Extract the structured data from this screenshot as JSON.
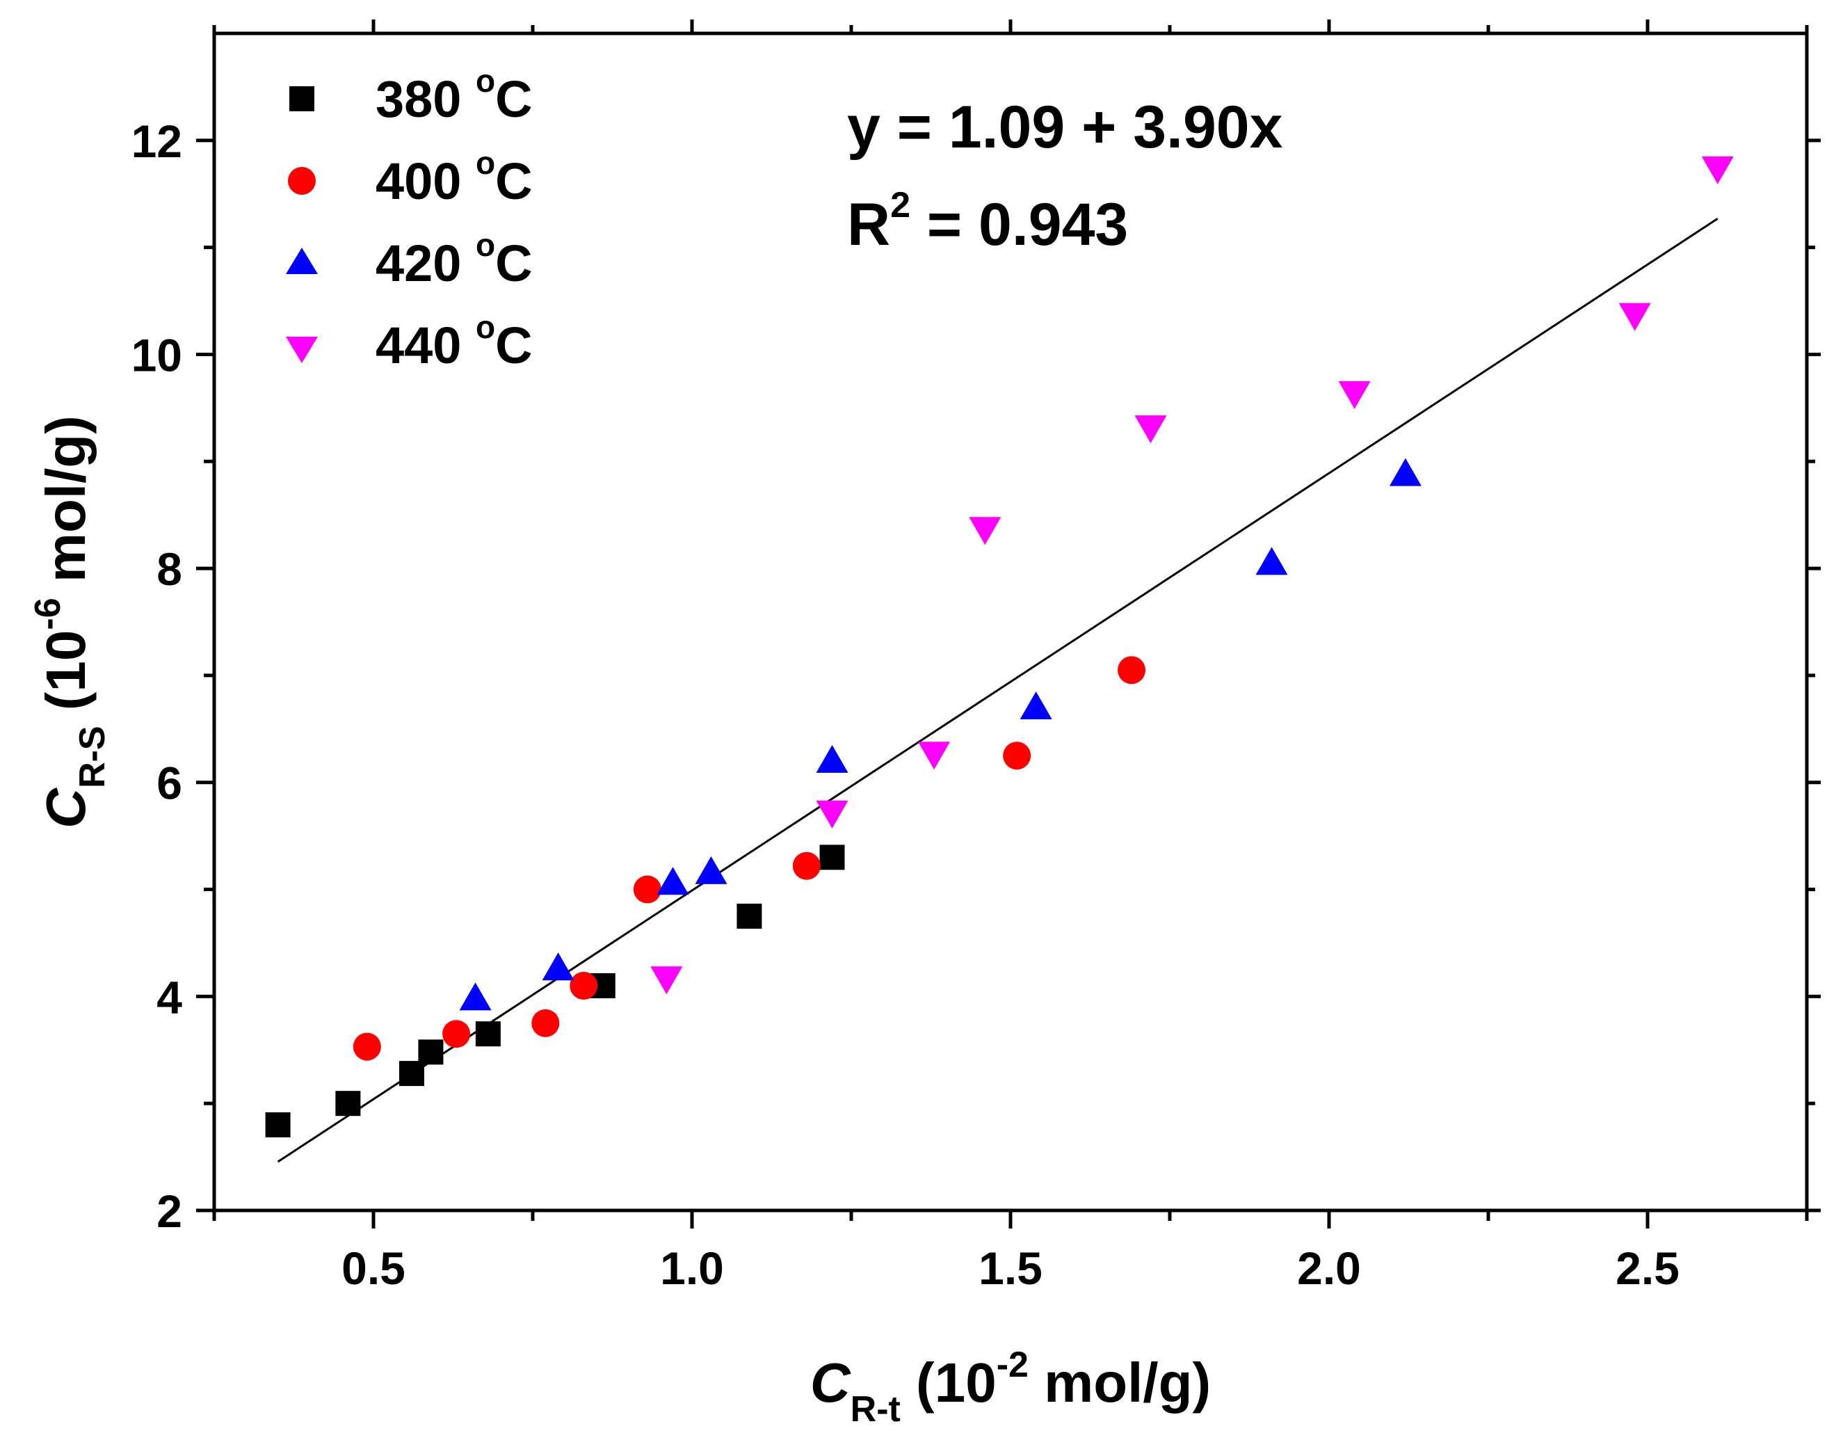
{
  "chart_data": {
    "type": "scatter",
    "title": "",
    "xlabel": {
      "main": "C",
      "sub": "R-t",
      "pre": " (10",
      "exp": "-2",
      "post": " mol/g)"
    },
    "ylabel": {
      "main": "C",
      "sub": "R-S",
      "pre": " (10",
      "exp": "-6",
      "post": " mol/g)"
    },
    "xlim": [
      0.25,
      2.75
    ],
    "ylim": [
      2,
      13
    ],
    "xticks_major": [
      0.5,
      1.0,
      1.5,
      2.0,
      2.5
    ],
    "xtick_labels": [
      "0.5",
      "1.0",
      "1.5",
      "2.0",
      "2.5"
    ],
    "xticks_minor": [
      0.25,
      0.75,
      1.25,
      1.75,
      2.25,
      2.75
    ],
    "yticks_major": [
      2,
      4,
      6,
      8,
      10,
      12
    ],
    "ytick_labels": [
      "2",
      "4",
      "6",
      "8",
      "10",
      "12"
    ],
    "yticks_minor": [
      3,
      5,
      7,
      9,
      11
    ],
    "legend_position": "top-left",
    "grid": false,
    "series": [
      {
        "name": "380 °C",
        "label_num": "380 ",
        "label_deg": "o",
        "label_unit": "C",
        "marker": "square",
        "color": "#000000",
        "x": [
          0.35,
          0.46,
          0.56,
          0.59,
          0.68,
          0.86,
          1.09,
          1.22
        ],
        "y": [
          2.8,
          3.0,
          3.28,
          3.48,
          3.65,
          4.1,
          4.75,
          5.3
        ]
      },
      {
        "name": "400 °C",
        "label_num": "400 ",
        "label_deg": "o",
        "label_unit": "C",
        "marker": "circle",
        "color": "#ff0000",
        "x": [
          0.49,
          0.63,
          0.77,
          0.83,
          0.93,
          1.18,
          1.51,
          1.69
        ],
        "y": [
          3.53,
          3.65,
          3.75,
          4.1,
          5.0,
          5.22,
          6.25,
          7.05
        ]
      },
      {
        "name": "420 °C",
        "label_num": "420 ",
        "label_deg": "o",
        "label_unit": "C",
        "marker": "triangle-up",
        "color": "#0000ff",
        "x": [
          0.66,
          0.79,
          0.97,
          1.03,
          1.22,
          1.54,
          1.91,
          2.12
        ],
        "y": [
          4.0,
          4.28,
          5.08,
          5.18,
          6.22,
          6.72,
          8.07,
          8.9
        ]
      },
      {
        "name": "440 °C",
        "label_num": "440 ",
        "label_deg": "o",
        "label_unit": "C",
        "marker": "triangle-down",
        "color": "#ff00ff",
        "x": [
          0.96,
          1.22,
          1.38,
          1.46,
          1.72,
          2.04,
          2.48,
          2.61
        ],
        "y": [
          4.15,
          5.7,
          6.25,
          8.35,
          9.3,
          9.62,
          10.35,
          11.72
        ]
      }
    ],
    "fit_line": {
      "intercept": 1.09,
      "slope": 3.9,
      "x_range": [
        0.35,
        2.61
      ],
      "color": "#000000"
    },
    "annotations": {
      "equation": "y = 1.09 + 3.90x",
      "r2_prefix": "R",
      "r2_exp": "2",
      "r2_value": " = 0.943"
    }
  }
}
